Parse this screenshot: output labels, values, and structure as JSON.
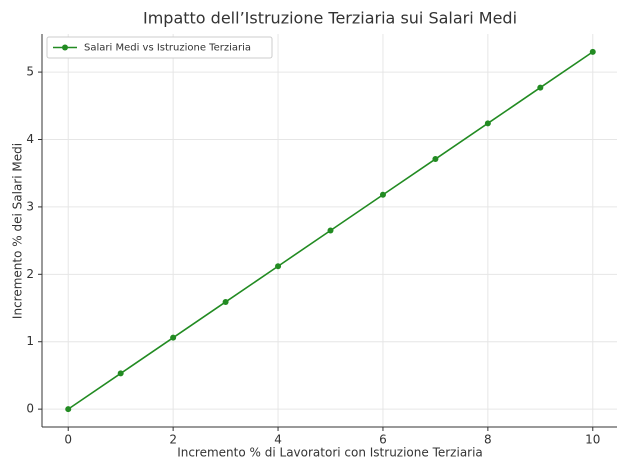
{
  "chart_data": {
    "type": "line",
    "title": "Impatto dell’Istruzione Terziaria sui Salari Medi",
    "xlabel": "Incremento % di Lavoratori con Istruzione Terziaria",
    "ylabel": "Incremento % dei Salari Medi",
    "x": [
      0,
      1,
      2,
      3,
      4,
      5,
      6,
      7,
      8,
      9,
      10
    ],
    "series": [
      {
        "name": "Salari Medi vs Istruzione Terziaria",
        "color": "#228b22",
        "values": [
          0,
          0.53,
          1.06,
          1.59,
          2.12,
          2.65,
          3.18,
          3.71,
          4.24,
          4.77,
          5.3
        ]
      }
    ],
    "xlim": [
      -0.5,
      10.5
    ],
    "xticks": [
      0,
      2,
      4,
      6,
      8,
      10
    ],
    "ylim": [
      -0.265,
      5.565
    ],
    "yticks": [
      0,
      1,
      2,
      3,
      4,
      5
    ],
    "grid": true,
    "legend": "upper left"
  }
}
